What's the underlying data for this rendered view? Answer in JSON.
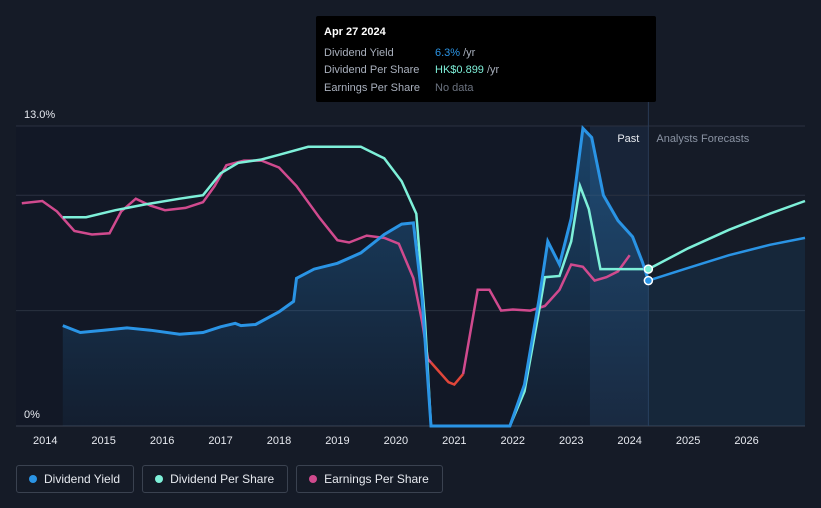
{
  "tooltip": {
    "date": "Apr 27 2024",
    "rows": [
      {
        "label": "Dividend Yield",
        "value": "6.3%",
        "unit": "/yr"
      },
      {
        "label": "Dividend Per Share",
        "value": "HK$0.899",
        "unit": "/yr"
      },
      {
        "label": "Earnings Per Share",
        "value": "No data",
        "unit": ""
      }
    ]
  },
  "regions": {
    "past": "Past",
    "forecast": "Analysts Forecasts"
  },
  "legend": [
    {
      "label": "Dividend Yield",
      "color": "#2a94e5"
    },
    {
      "label": "Dividend Per Share",
      "color": "#7ef0d9"
    },
    {
      "label": "Earnings Per Share",
      "color": "#d04a8e"
    }
  ],
  "colors": {
    "background": "#151b27",
    "yield": "#2a94e5",
    "dps": "#7ef0d9",
    "eps": "#d04a8e",
    "eps_negative": "#e0463a"
  },
  "chart_data": {
    "type": "line",
    "title": "",
    "xlabel": "",
    "ylabel": "",
    "xlim": [
      2013.5,
      2027.0
    ],
    "ylim": [
      0,
      13.0
    ],
    "y_axis_labels": [
      "13.0%",
      "0%"
    ],
    "y_gridlines": [
      0,
      5,
      10,
      13
    ],
    "x_ticks": [
      2014,
      2015,
      2016,
      2017,
      2018,
      2019,
      2020,
      2021,
      2022,
      2023,
      2024,
      2025,
      2026
    ],
    "past_end": 2024.32,
    "forecast_shade_start": 2023.32,
    "series": [
      {
        "name": "Dividend Yield",
        "unit": "%",
        "points": [
          [
            2014.3,
            4.35
          ],
          [
            2014.6,
            4.05
          ],
          [
            2015.0,
            4.15
          ],
          [
            2015.4,
            4.25
          ],
          [
            2015.8,
            4.15
          ],
          [
            2016.3,
            3.98
          ],
          [
            2016.7,
            4.05
          ],
          [
            2017.0,
            4.3
          ],
          [
            2017.25,
            4.45
          ],
          [
            2017.35,
            4.35
          ],
          [
            2017.6,
            4.4
          ],
          [
            2018.0,
            4.95
          ],
          [
            2018.25,
            5.4
          ],
          [
            2018.3,
            6.4
          ],
          [
            2018.6,
            6.8
          ],
          [
            2019.0,
            7.05
          ],
          [
            2019.4,
            7.5
          ],
          [
            2019.8,
            8.3
          ],
          [
            2020.1,
            8.75
          ],
          [
            2020.3,
            8.8
          ],
          [
            2020.45,
            5.5
          ],
          [
            2020.6,
            0.0
          ],
          [
            2021.5,
            0.0
          ],
          [
            2021.95,
            0.0
          ],
          [
            2022.2,
            1.8
          ],
          [
            2022.45,
            5.5
          ],
          [
            2022.6,
            8.0
          ],
          [
            2022.8,
            7.0
          ],
          [
            2023.0,
            9.0
          ],
          [
            2023.2,
            12.9
          ],
          [
            2023.35,
            12.5
          ],
          [
            2023.55,
            10.0
          ],
          [
            2023.8,
            8.9
          ],
          [
            2024.05,
            8.2
          ],
          [
            2024.22,
            7.1
          ],
          [
            2024.32,
            6.3
          ]
        ]
      },
      {
        "name": "Dividend Yield (forecast)",
        "unit": "%",
        "points": [
          [
            2024.32,
            6.3
          ],
          [
            2025.0,
            6.85
          ],
          [
            2025.7,
            7.4
          ],
          [
            2026.4,
            7.85
          ],
          [
            2027.0,
            8.15
          ]
        ]
      },
      {
        "name": "Dividend Per Share",
        "unit": "relative",
        "points": [
          [
            2014.3,
            9.05
          ],
          [
            2014.7,
            9.05
          ],
          [
            2015.2,
            9.35
          ],
          [
            2015.7,
            9.6
          ],
          [
            2016.3,
            9.85
          ],
          [
            2016.7,
            10.0
          ],
          [
            2017.0,
            10.95
          ],
          [
            2017.3,
            11.4
          ],
          [
            2017.7,
            11.55
          ],
          [
            2018.0,
            11.75
          ],
          [
            2018.5,
            12.1
          ],
          [
            2019.0,
            12.1
          ],
          [
            2019.4,
            12.1
          ],
          [
            2019.8,
            11.6
          ],
          [
            2020.1,
            10.6
          ],
          [
            2020.35,
            9.2
          ],
          [
            2020.5,
            4.5
          ],
          [
            2020.6,
            0.0
          ],
          [
            2021.5,
            0.0
          ],
          [
            2021.95,
            0.0
          ],
          [
            2022.2,
            1.5
          ],
          [
            2022.45,
            5.0
          ],
          [
            2022.55,
            6.45
          ],
          [
            2022.8,
            6.5
          ],
          [
            2023.0,
            8.0
          ],
          [
            2023.15,
            10.4
          ],
          [
            2023.3,
            9.4
          ],
          [
            2023.5,
            6.8
          ],
          [
            2023.75,
            6.8
          ],
          [
            2024.32,
            6.8
          ]
        ]
      },
      {
        "name": "Dividend Per Share (forecast)",
        "unit": "relative",
        "points": [
          [
            2024.32,
            6.8
          ],
          [
            2025.0,
            7.7
          ],
          [
            2025.7,
            8.5
          ],
          [
            2026.4,
            9.2
          ],
          [
            2027.0,
            9.75
          ]
        ]
      },
      {
        "name": "Earnings Per Share",
        "unit": "relative",
        "points": [
          [
            2013.6,
            9.65
          ],
          [
            2013.95,
            9.75
          ],
          [
            2014.2,
            9.3
          ],
          [
            2014.5,
            8.45
          ],
          [
            2014.8,
            8.3
          ],
          [
            2015.1,
            8.35
          ],
          [
            2015.3,
            9.3
          ],
          [
            2015.55,
            9.85
          ],
          [
            2015.8,
            9.55
          ],
          [
            2016.05,
            9.35
          ],
          [
            2016.4,
            9.45
          ],
          [
            2016.7,
            9.7
          ],
          [
            2016.9,
            10.4
          ],
          [
            2017.1,
            11.3
          ],
          [
            2017.4,
            11.5
          ],
          [
            2017.7,
            11.5
          ],
          [
            2018.0,
            11.2
          ],
          [
            2018.3,
            10.4
          ],
          [
            2018.7,
            9.0
          ],
          [
            2019.0,
            8.05
          ],
          [
            2019.2,
            7.95
          ],
          [
            2019.5,
            8.25
          ],
          [
            2019.8,
            8.15
          ],
          [
            2020.05,
            7.9
          ],
          [
            2020.3,
            6.4
          ],
          [
            2020.45,
            4.5
          ],
          [
            2020.55,
            2.9
          ],
          [
            2020.6,
            2.75
          ],
          [
            2020.9,
            1.9
          ],
          [
            2021.0,
            1.8
          ],
          [
            2021.15,
            2.25
          ],
          [
            2021.4,
            5.9
          ],
          [
            2021.6,
            5.9
          ],
          [
            2021.8,
            5.0
          ],
          [
            2022.0,
            5.05
          ],
          [
            2022.3,
            5.0
          ],
          [
            2022.55,
            5.2
          ],
          [
            2022.8,
            5.9
          ],
          [
            2023.0,
            7.0
          ],
          [
            2023.2,
            6.9
          ],
          [
            2023.4,
            6.3
          ],
          [
            2023.6,
            6.45
          ],
          [
            2023.8,
            6.7
          ],
          [
            2024.0,
            7.4
          ]
        ]
      }
    ],
    "highlight_points": [
      {
        "series": "Dividend Yield",
        "x": 2024.32,
        "y": 6.3
      },
      {
        "series": "Dividend Per Share",
        "x": 2024.32,
        "y": 6.8
      }
    ]
  }
}
